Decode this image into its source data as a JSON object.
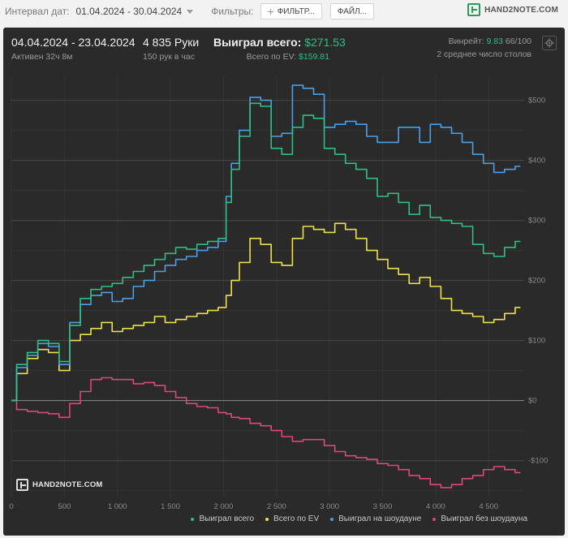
{
  "topbar": {
    "interval_label": "Интервал дат:",
    "interval_value": "01.04.2024 - 30.04.2024",
    "filters_label": "Фильтры:",
    "filter_button": "ФИЛЬТР...",
    "files_button": "ФАЙЛ...",
    "logo_text": "HAND2NOTE.COM"
  },
  "header": {
    "date_range": "04.04.2024 - 23.04.2024",
    "active": "Активен 32ч 8м",
    "hands": "4 835 Руки",
    "hands_rate": "150 рук в час",
    "won_label": "Выиграл всего:",
    "won_value": "$271.53",
    "ev_label": "Всего по EV:",
    "ev_value": "$159.81",
    "winrate_label": "Винрейт:",
    "winrate_value": "9.83",
    "winrate_rest": "66/100",
    "tables": "2 среднее число столов"
  },
  "watermark": "HAND2NOTE.COM",
  "chart_data": {
    "type": "line",
    "xlim": [
      0,
      4835
    ],
    "ylim": [
      -160,
      540
    ],
    "x_ticks": [
      0,
      500,
      1000,
      1500,
      2000,
      2500,
      3000,
      3500,
      4000,
      4500
    ],
    "x_tick_labels": [
      "0",
      "500",
      "1 000",
      "1 500",
      "2 000",
      "2 500",
      "3 000",
      "3 500",
      "4 000",
      "4 500"
    ],
    "y_ticks": [
      500,
      400,
      300,
      200,
      100,
      0,
      -100
    ],
    "y_tick_labels": [
      "$500",
      "$400",
      "$300",
      "$200",
      "$100",
      "$0",
      "-$100"
    ],
    "x": [
      0,
      100,
      200,
      300,
      400,
      500,
      600,
      700,
      800,
      900,
      1000,
      1100,
      1200,
      1300,
      1400,
      1500,
      1600,
      1700,
      1800,
      1900,
      2000,
      2050,
      2100,
      2200,
      2300,
      2400,
      2500,
      2600,
      2700,
      2800,
      2900,
      3000,
      3100,
      3200,
      3300,
      3400,
      3500,
      3600,
      3700,
      3800,
      3900,
      4000,
      4100,
      4200,
      4300,
      4400,
      4500,
      4600,
      4700,
      4800
    ],
    "series": [
      {
        "name": "Выиграл всего",
        "color": "#2fbf83",
        "values": [
          0,
          60,
          80,
          100,
          95,
          65,
          125,
          170,
          185,
          190,
          195,
          205,
          215,
          225,
          235,
          245,
          255,
          252,
          260,
          265,
          270,
          330,
          385,
          440,
          495,
          490,
          420,
          410,
          455,
          475,
          470,
          420,
          410,
          395,
          385,
          370,
          340,
          345,
          330,
          310,
          325,
          305,
          300,
          295,
          290,
          260,
          245,
          240,
          255,
          265
        ]
      },
      {
        "name": "Всего по EV",
        "color": "#ece24a",
        "values": [
          0,
          45,
          70,
          85,
          80,
          50,
          100,
          110,
          120,
          130,
          115,
          120,
          125,
          130,
          140,
          130,
          135,
          140,
          145,
          150,
          155,
          175,
          200,
          230,
          270,
          260,
          230,
          225,
          270,
          290,
          285,
          280,
          295,
          285,
          270,
          250,
          235,
          220,
          210,
          195,
          205,
          190,
          170,
          150,
          145,
          140,
          130,
          135,
          145,
          155
        ]
      },
      {
        "name": "Выиграл на шоудауне",
        "color": "#4aa0e6",
        "values": [
          0,
          55,
          75,
          95,
          90,
          60,
          130,
          160,
          175,
          180,
          165,
          170,
          190,
          200,
          215,
          225,
          235,
          240,
          250,
          255,
          265,
          340,
          395,
          450,
          505,
          500,
          440,
          445,
          525,
          520,
          510,
          455,
          460,
          465,
          460,
          440,
          430,
          430,
          455,
          455,
          430,
          460,
          455,
          445,
          430,
          410,
          395,
          380,
          385,
          390
        ]
      },
      {
        "name": "Выиграл без шоудауна",
        "color": "#e0457b",
        "values": [
          0,
          -15,
          -18,
          -20,
          -22,
          -28,
          -5,
          15,
          35,
          38,
          35,
          35,
          28,
          30,
          25,
          15,
          5,
          -5,
          -10,
          -12,
          -20,
          -22,
          -28,
          -30,
          -38,
          -42,
          -50,
          -60,
          -68,
          -65,
          -65,
          -75,
          -85,
          -92,
          -95,
          -98,
          -105,
          -108,
          -115,
          -125,
          -130,
          -140,
          -145,
          -140,
          -130,
          -125,
          -115,
          -110,
          -115,
          -120
        ]
      }
    ]
  },
  "legend": [
    {
      "label": "Выиграл всего",
      "color": "#2fbf83"
    },
    {
      "label": "Всего по EV",
      "color": "#ece24a"
    },
    {
      "label": "Выиграл на шоудауне",
      "color": "#4aa0e6"
    },
    {
      "label": "Выиграл без шоудауна",
      "color": "#e0457b"
    }
  ]
}
